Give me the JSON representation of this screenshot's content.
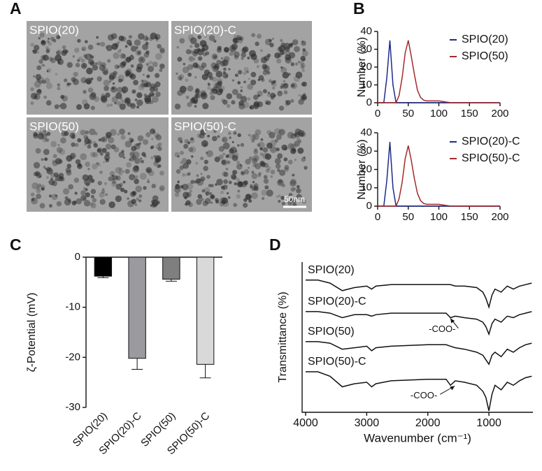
{
  "panel_labels": [
    "A",
    "B",
    "C",
    "D"
  ],
  "micrographs": {
    "labels": [
      "SPIO(20)",
      "SPIO(20)-C",
      "SPIO(50)",
      "SPIO(50)-C"
    ],
    "scale_bar": "50nm"
  },
  "chart_data": [
    {
      "type": "line",
      "ylabel": "Number (%)",
      "x": [
        0,
        10,
        15,
        20,
        25,
        30,
        35,
        40,
        45,
        50,
        55,
        60,
        65,
        70,
        75,
        80,
        90,
        100,
        110,
        120,
        200
      ],
      "series": [
        {
          "name": "SPIO(20)",
          "color": "#1f2a8a",
          "values": [
            0,
            0,
            14,
            35,
            10,
            0,
            0,
            0,
            0,
            0,
            0,
            0,
            0,
            0,
            0,
            0,
            0,
            0,
            0,
            0,
            0
          ]
        },
        {
          "name": "SPIO(50)",
          "color": "#a32a2a",
          "values": [
            0,
            0,
            0,
            0,
            0,
            0,
            4,
            14,
            28,
            35,
            26,
            16,
            7,
            3,
            1.5,
            1,
            1,
            1,
            0.5,
            0,
            0
          ]
        }
      ],
      "xlim": [
        0,
        200
      ],
      "xticks": [
        0,
        50,
        100,
        150,
        200
      ],
      "ylim": [
        0,
        40
      ],
      "yticks": [
        0,
        10,
        20,
        30,
        40
      ]
    },
    {
      "type": "line",
      "ylabel": "Number (%)",
      "x": [
        0,
        10,
        15,
        20,
        25,
        30,
        35,
        40,
        45,
        50,
        55,
        60,
        65,
        70,
        75,
        80,
        90,
        100,
        110,
        120,
        200
      ],
      "series": [
        {
          "name": "SPIO(20)-C",
          "color": "#1f2a8a",
          "values": [
            0,
            0,
            14,
            35,
            10,
            0,
            0,
            0,
            0,
            0,
            0,
            0,
            0,
            0,
            0,
            0,
            0,
            0,
            0,
            0,
            0
          ]
        },
        {
          "name": "SPIO(50)-C",
          "color": "#a32a2a",
          "values": [
            0,
            0,
            0,
            0,
            0,
            0,
            4,
            13,
            26,
            33,
            25,
            15,
            7,
            3,
            1.5,
            1,
            1,
            1,
            0.5,
            0,
            0
          ]
        }
      ],
      "xlim": [
        0,
        200
      ],
      "xticks": [
        0,
        50,
        100,
        150,
        200
      ],
      "ylim": [
        0,
        40
      ],
      "yticks": [
        0,
        10,
        20,
        30,
        40
      ]
    },
    {
      "type": "bar",
      "ylabel": "ζ-Potential (mV)",
      "categories": [
        "SPIO(20)",
        "SPIO(20)-C",
        "SPIO(50)",
        "SPIO(50)-C"
      ],
      "values": [
        -3.8,
        -20.2,
        -4.4,
        -21.4
      ],
      "errors": [
        0.3,
        2.2,
        0.4,
        2.7
      ],
      "colors": [
        "#000000",
        "#9a9a9f",
        "#7f7f7f",
        "#d9d9d9"
      ],
      "ylim": [
        -30,
        0
      ],
      "yticks": [
        -30,
        -20,
        -10,
        0
      ]
    },
    {
      "type": "line",
      "xlabel": "Wavenumber (cm⁻¹)",
      "ylabel": "Transmittance (%)",
      "x": [
        4000,
        3800,
        3600,
        3400,
        3200,
        3000,
        2920,
        2850,
        2600,
        2000,
        1700,
        1630,
        1550,
        1400,
        1200,
        1100,
        1050,
        1000,
        950,
        900,
        800,
        700,
        600,
        500,
        400,
        300
      ],
      "series": [
        {
          "name": "SPIO(20)",
          "color": "#111111",
          "values": [
            8.8,
            8.8,
            8.6,
            8.1,
            8.3,
            8.4,
            8.2,
            8.4,
            8.5,
            8.5,
            8.5,
            8.5,
            8.4,
            8.4,
            8.3,
            8.0,
            7.6,
            7.0,
            7.8,
            8.2,
            8.0,
            8.4,
            8.2,
            8.4,
            8.5,
            8.6
          ]
        },
        {
          "name": "SPIO(20)-C",
          "color": "#111111",
          "values": [
            6.7,
            6.7,
            6.6,
            6.3,
            6.5,
            6.5,
            6.4,
            6.5,
            6.6,
            6.6,
            6.6,
            6.3,
            6.4,
            6.3,
            6.2,
            6.0,
            5.7,
            5.2,
            5.9,
            6.2,
            6.0,
            6.4,
            6.3,
            6.5,
            6.6,
            6.7
          ]
        },
        {
          "name": "SPIO(50)",
          "color": "#111111",
          "values": [
            4.7,
            4.7,
            4.6,
            4.2,
            4.3,
            4.4,
            4.1,
            4.3,
            4.4,
            4.5,
            4.5,
            4.4,
            4.3,
            4.2,
            4.0,
            3.8,
            3.5,
            3.2,
            3.8,
            4.0,
            3.7,
            4.2,
            4.0,
            4.3,
            4.5,
            4.6
          ]
        },
        {
          "name": "SPIO(50)-C",
          "color": "#111111",
          "values": [
            2.7,
            2.7,
            2.4,
            1.7,
            1.9,
            2.0,
            1.7,
            1.9,
            2.1,
            2.2,
            2.2,
            1.8,
            2.1,
            2.0,
            1.8,
            1.4,
            1.0,
            0.1,
            1.2,
            1.8,
            1.5,
            2.0,
            1.8,
            2.1,
            2.3,
            2.4
          ]
        }
      ],
      "annotations": [
        "-COO-",
        "-COO-"
      ],
      "xlim": [
        4000,
        280
      ],
      "xticks": [
        4000,
        3000,
        2000,
        1000
      ],
      "ylim": [
        0,
        10
      ]
    }
  ]
}
